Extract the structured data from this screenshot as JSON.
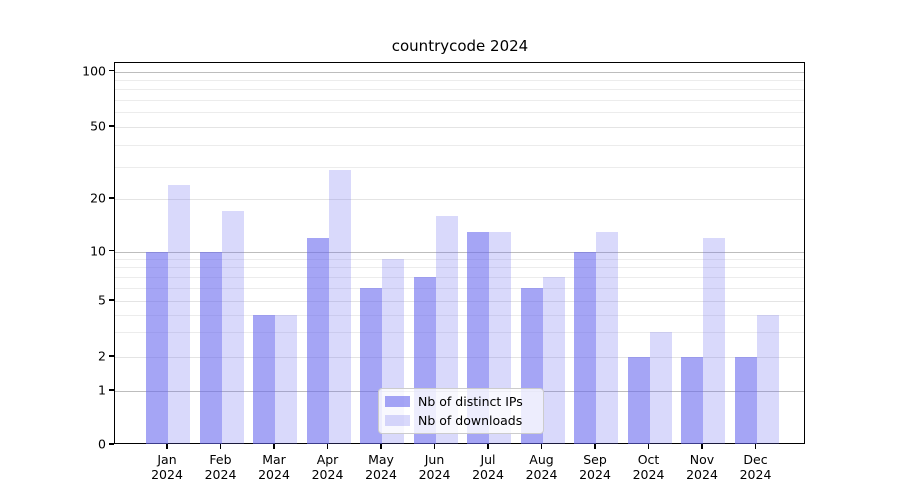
{
  "title": "countrycode 2024",
  "legend": {
    "items": [
      {
        "label": "Nb of distinct IPs",
        "color": "rgba(102,102,238,0.59)"
      },
      {
        "label": "Nb of downloads",
        "color": "rgba(102,102,238,0.25)"
      }
    ]
  },
  "colors": {
    "bar_base": "#6666ee",
    "series_fill": [
      "rgba(102,102,238,0.59)",
      "rgba(102,102,238,0.25)"
    ],
    "grid_major": "#bdbdbd",
    "grid_minor": "#ececec",
    "axis": "#000000"
  },
  "chart_data": {
    "type": "bar",
    "title": "countrycode 2024",
    "categories": [
      "Jan",
      "Feb",
      "Mar",
      "Apr",
      "May",
      "Jun",
      "Jul",
      "Aug",
      "Sep",
      "Oct",
      "Nov",
      "Dec"
    ],
    "category_year": "2024",
    "series": [
      {
        "name": "Nb of distinct IPs",
        "values": [
          10,
          10,
          4,
          12,
          6,
          7,
          13,
          6,
          10,
          2,
          2,
          2
        ]
      },
      {
        "name": "Nb of downloads",
        "values": [
          24,
          17,
          4,
          29,
          9,
          16,
          13,
          7,
          13,
          3,
          12,
          4
        ]
      }
    ],
    "xlabel": "",
    "ylabel": "",
    "yscale": "symlog",
    "yticks": [
      100,
      50,
      20,
      10,
      5,
      2,
      1,
      0
    ],
    "ylim": [
      0,
      120
    ],
    "grid": true,
    "legend_position": "lower center"
  }
}
